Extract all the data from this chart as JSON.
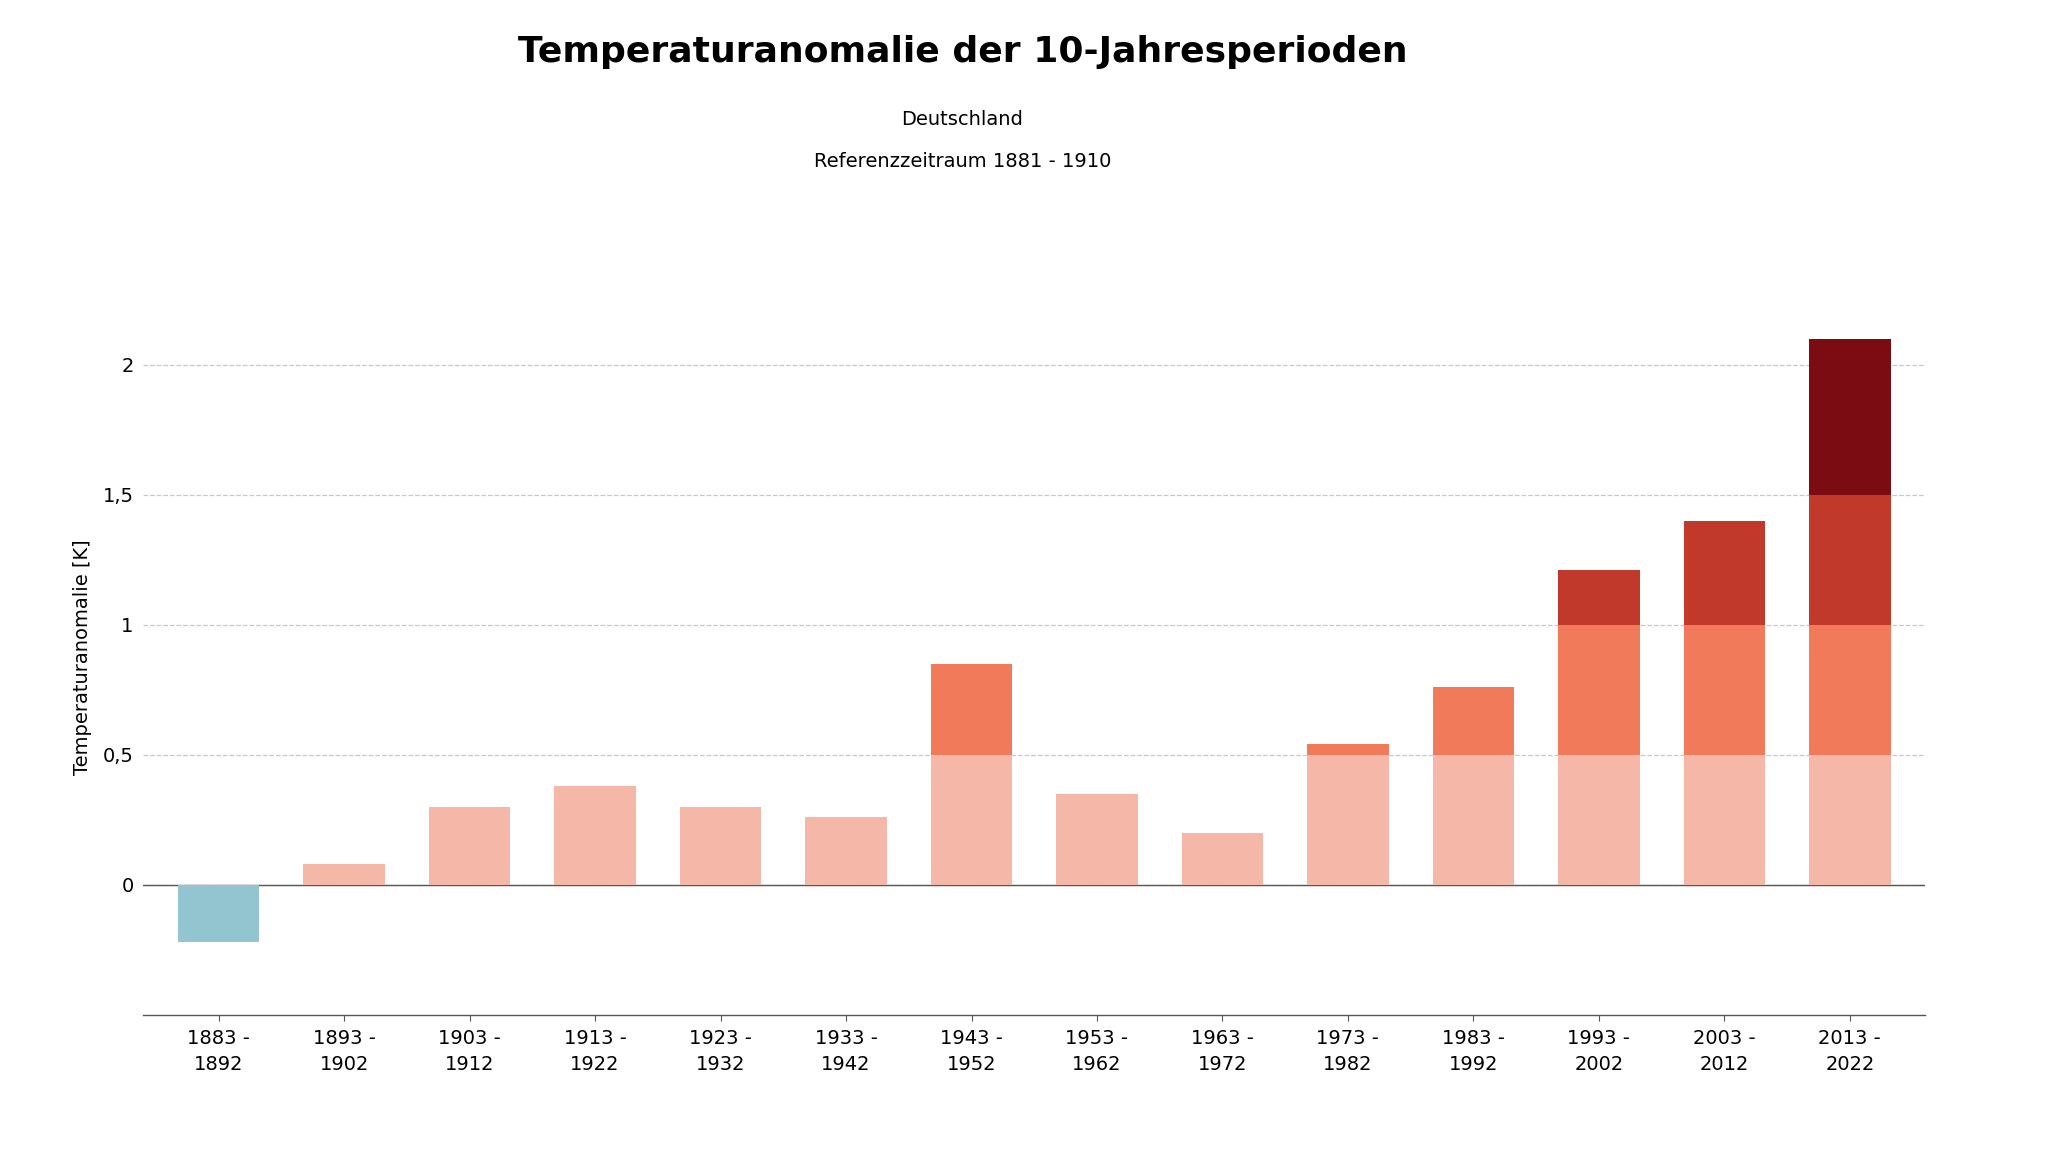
{
  "categories": [
    "1883 -\n1892",
    "1893 -\n1902",
    "1903 -\n1912",
    "1913 -\n1922",
    "1923 -\n1932",
    "1933 -\n1942",
    "1943 -\n1952",
    "1953 -\n1962",
    "1963 -\n1972",
    "1973 -\n1982",
    "1983 -\n1992",
    "1993 -\n2002",
    "2003 -\n2012",
    "2013 -\n2022"
  ],
  "values": [
    -0.22,
    0.08,
    0.3,
    0.38,
    0.3,
    0.26,
    0.85,
    0.35,
    0.2,
    0.54,
    0.76,
    1.21,
    1.4,
    2.1
  ],
  "title": "Temperaturanomalie der 10-Jahresperioden",
  "subtitle1": "Deutschland",
  "subtitle2": "Referenzzeitraum 1881 - 1910",
  "ylabel": "Temperaturanomalie [K]",
  "color_negative": "#92C5D0",
  "color_layer1": "#F5B8A8",
  "color_layer2": "#F07A5A",
  "color_layer3": "#C0392B",
  "color_layer4": "#7B0C12",
  "threshold1": 0.5,
  "threshold2": 1.0,
  "threshold3": 1.5,
  "ylim_min": -0.5,
  "ylim_max": 2.25,
  "yticks": [
    0.0,
    0.5,
    1.0,
    1.5,
    2.0
  ],
  "ytick_labels": [
    "0",
    "0,5",
    "1",
    "1,5",
    "2"
  ],
  "background_color": "#ffffff",
  "plot_background": "#ffffff",
  "grid_color": "#bbbbbb",
  "title_fontsize": 26,
  "subtitle_fontsize": 14,
  "ylabel_fontsize": 14,
  "tick_fontsize": 14
}
